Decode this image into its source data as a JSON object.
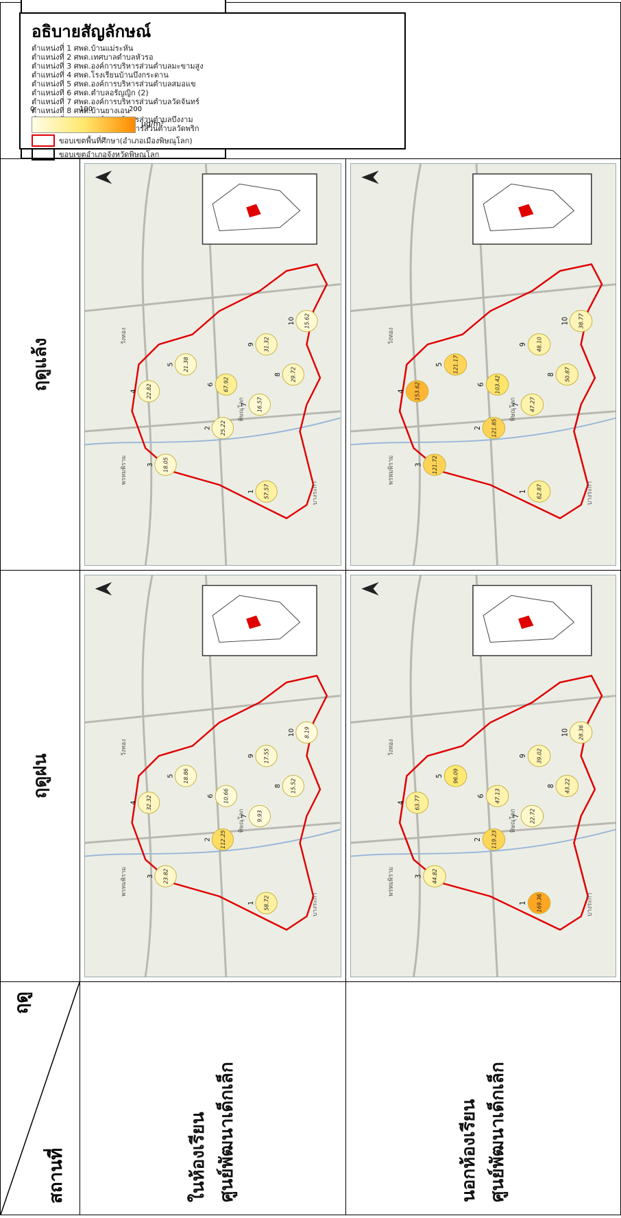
{
  "header": {
    "diag_top": "ฤดู",
    "diag_bottom": "สถานที่",
    "season_rain": "ฤดูฝน",
    "season_dry": "ฤดูแล้ง"
  },
  "rows": [
    {
      "label_line1": "ในห้องเรียน",
      "label_line2": "ศูนย์พัฒนาเด็กเล็ก"
    },
    {
      "label_line1": "นอกห้องเรียน",
      "label_line2": "ศูนย์พัฒนาเด็กเล็ก"
    }
  ],
  "legend": {
    "title": "อธิบายสัญลักษณ์",
    "items": [
      "ตำแหน่งที่ 1 ศพด.บ้านแม่ระหัน",
      "ตำแหน่งที่ 2 ศพด.เทศบาลตำบลหัวรอ",
      "ตำแหน่งที่ 3 ศพด.องค์การบริหารส่วนตำบลมะขามสูง",
      "ตำแหน่งที่ 4 ศพด.โรงเรียนบ้านบึงกระดาน",
      "ตำแหน่งที่ 5 ศพด.องค์การบริหารส่วนตำบลสมอแข",
      "ตำแหน่งที่ 6 ศพด.ตำบลอรัญญิก (2)",
      "ตำแหน่งที่ 7 ศพด.องค์การบริหารส่วนตำบลวัดจันทร์",
      "ตำแหน่งที่ 8 ศพด.บ้านยางเอน",
      "ตำแหน่งที่ 9 ศพด.องค์การบริหารส่วนตำบลบึงงาม",
      "ตำแหน่งที่ 10 ศพด.องค์การบริหารส่วนตำบลวัดพริก"
    ],
    "boundary_study": "ขอบเขตพื้นที่ศึกษา(อำเภอเมืองพิษณุโลก)",
    "boundary_province": "ขอบเขตอำเภอจังหวัดพิษณุโลก",
    "scale_ticks": [
      "0",
      "100",
      "200"
    ],
    "unit": "µg/m³",
    "colors": {
      "low": "#fffde8",
      "mid": "#ffe86e",
      "high": "#ff8a00",
      "boundary_red": "#e00000"
    }
  },
  "maps": {
    "indoor_rain": {
      "values": [
        "58.72",
        "112.25",
        "23.82",
        "32.32",
        "18.86",
        "10.66",
        "9.93",
        "15.52",
        "17.55",
        "8.19"
      ]
    },
    "indoor_dry": {
      "values": [
        "57.57",
        "25.22",
        "18.05",
        "22.82",
        "21.38",
        "67.92",
        "16.57",
        "29.72",
        "31.32",
        "15.62"
      ]
    },
    "outdoor_rain": {
      "values": [
        "169.36",
        "119.23",
        "44.82",
        "63.77",
        "96.09",
        "47.13",
        "22.72",
        "43.22",
        "39.02",
        "28.36"
      ]
    },
    "outdoor_dry": {
      "values": [
        "62.87",
        "121.85",
        "121.72",
        "153.62",
        "121.17",
        "103.42",
        "47.27",
        "50.87",
        "48.10",
        "38.77"
      ]
    }
  },
  "map_labels": [
    "พิษณุโลก",
    "บางระกำ",
    "วังทอง",
    "พรหมพิราม"
  ]
}
